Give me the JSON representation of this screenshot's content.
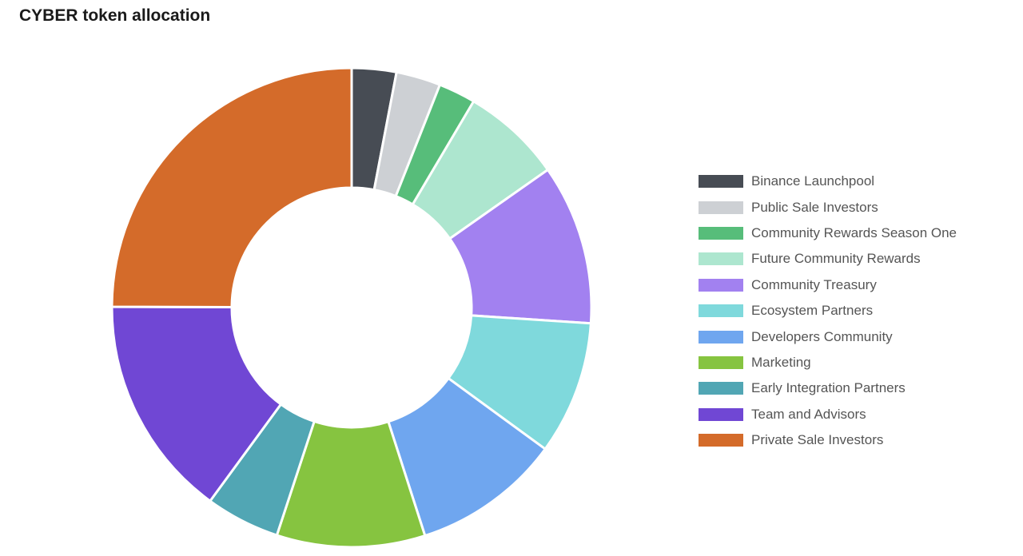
{
  "chart_data": {
    "type": "pie",
    "variant": "donut",
    "title": "CYBER token allocation",
    "unit": "%",
    "legend_position": "right",
    "slices": [
      {
        "label": "Binance Launchpool",
        "value": 3,
        "color": "#474c54"
      },
      {
        "label": "Public Sale Investors",
        "value": 3,
        "color": "#cdd0d4"
      },
      {
        "label": "Community Rewards Season One",
        "value": 2.5,
        "color": "#57bd7a"
      },
      {
        "label": "Future Community Rewards",
        "value": 6.75,
        "color": "#ade6cf"
      },
      {
        "label": "Community Treasury",
        "value": 10.8,
        "color": "#a281f0"
      },
      {
        "label": "Ecosystem Partners",
        "value": 9,
        "color": "#7fd9dc"
      },
      {
        "label": "Developers Community",
        "value": 10,
        "color": "#6fa6ef"
      },
      {
        "label": "Marketing",
        "value": 10,
        "color": "#86c440"
      },
      {
        "label": "Early Integration Partners",
        "value": 5,
        "color": "#51a6b4"
      },
      {
        "label": "Team and Advisors",
        "value": 15,
        "color": "#7047d4"
      },
      {
        "label": "Private Sale Investors",
        "value": 24.95,
        "color": "#d46b2a"
      }
    ]
  }
}
